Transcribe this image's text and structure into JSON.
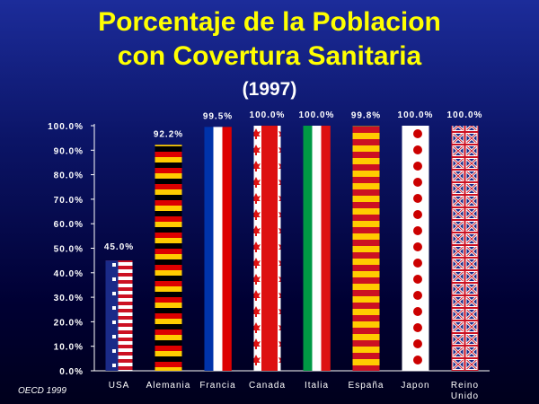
{
  "chart_data": {
    "type": "bar",
    "title": "Porcentaje de la Poblacion con Covertura Sanitaria",
    "subtitle": "(1997)",
    "title_line1": "Porcentaje de la Poblacion",
    "title_line2": "con Covertura Sanitaria",
    "categories": [
      "USA",
      "Alemania",
      "Francia",
      "Canada",
      "Italia",
      "España",
      "Japon",
      "Reino Unido"
    ],
    "category_lines": [
      [
        "USA"
      ],
      [
        "Alemania"
      ],
      [
        "Francia"
      ],
      [
        "Canada"
      ],
      [
        "Italia"
      ],
      [
        "España"
      ],
      [
        "Japon"
      ],
      [
        "Reino",
        "Unido"
      ]
    ],
    "values": [
      45.0,
      92.2,
      99.5,
      100.0,
      100.0,
      99.8,
      100.0,
      100.0
    ],
    "value_labels": [
      "45.0%",
      "92.2%",
      "99.5%",
      "100.0%",
      "100.0%",
      "99.8%",
      "100.0%",
      "100.0%"
    ],
    "bar_styles": [
      "flag-usa",
      "flag-germany",
      "flag-france",
      "flag-canada",
      "flag-italy",
      "flag-spain",
      "flag-japan",
      "flag-uk"
    ],
    "yticks": [
      "0.0%",
      "10.0%",
      "20.0%",
      "30.0%",
      "40.0%",
      "50.0%",
      "60.0%",
      "70.0%",
      "80.0%",
      "90.0%",
      "100.0%"
    ],
    "ylim": [
      0,
      100
    ],
    "xlabel": "",
    "ylabel": "",
    "grid": false,
    "source": "OECD 1999"
  },
  "colors": {
    "title": "#ffff00",
    "text": "#ffffff",
    "axis": "#ffffff"
  }
}
